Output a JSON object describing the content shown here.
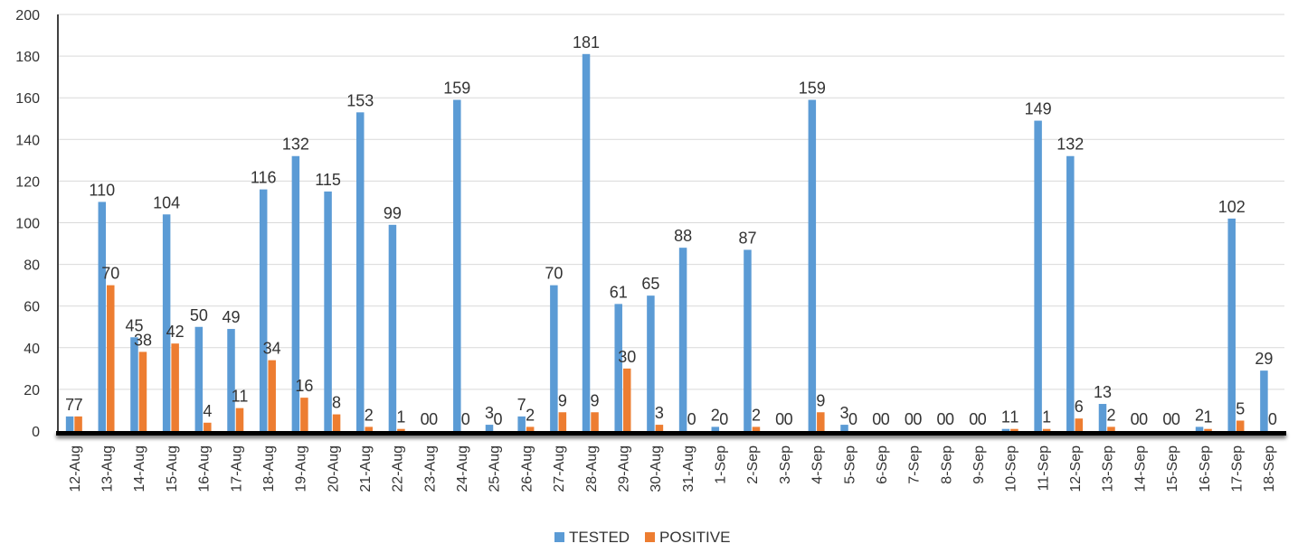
{
  "chart_data": {
    "type": "bar",
    "title": "",
    "xlabel": "",
    "ylabel": "",
    "ylim": [
      0,
      200
    ],
    "yticks": [
      0,
      20,
      40,
      60,
      80,
      100,
      120,
      140,
      160,
      180,
      200
    ],
    "grid": true,
    "legend_position": "bottom",
    "categories": [
      "12-Aug",
      "13-Aug",
      "14-Aug",
      "15-Aug",
      "16-Aug",
      "17-Aug",
      "18-Aug",
      "19-Aug",
      "20-Aug",
      "21-Aug",
      "22-Aug",
      "23-Aug",
      "24-Aug",
      "25-Aug",
      "26-Aug",
      "27-Aug",
      "28-Aug",
      "29-Aug",
      "30-Aug",
      "31-Aug",
      "1-Sep",
      "2-Sep",
      "3-Sep",
      "4-Sep",
      "5-Sep",
      "6-Sep",
      "7-Sep",
      "8-Sep",
      "9-Sep",
      "10-Sep",
      "11-Sep",
      "12-Sep",
      "13-Sep",
      "14-Sep",
      "15-Sep",
      "16-Sep",
      "17-Sep",
      "18-Sep"
    ],
    "series": [
      {
        "name": "TESTED",
        "color": "#5B9BD5",
        "values": [
          7,
          110,
          45,
          104,
          50,
          49,
          116,
          132,
          115,
          153,
          99,
          0,
          159,
          3,
          7,
          70,
          181,
          61,
          65,
          88,
          2,
          87,
          0,
          159,
          3,
          0,
          0,
          0,
          0,
          1,
          149,
          132,
          13,
          0,
          0,
          2,
          102,
          29
        ]
      },
      {
        "name": "POSITIVE",
        "color": "#ED7D31",
        "values": [
          7,
          70,
          38,
          42,
          4,
          11,
          34,
          16,
          8,
          2,
          1,
          0,
          0,
          0,
          2,
          9,
          9,
          30,
          3,
          0,
          0,
          2,
          0,
          9,
          0,
          0,
          0,
          0,
          0,
          1,
          1,
          6,
          2,
          0,
          0,
          1,
          5,
          0
        ]
      }
    ]
  }
}
